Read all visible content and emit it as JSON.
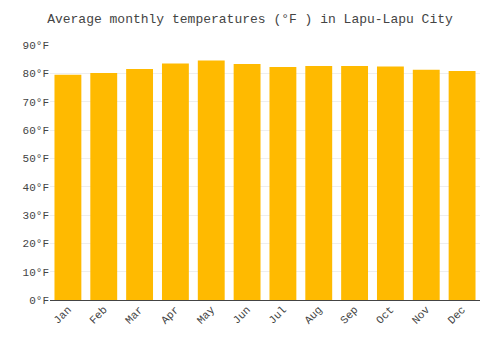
{
  "chart_data": {
    "type": "bar",
    "title": "Average monthly temperatures (°F ) in Lapu-Lapu City",
    "categories": [
      "Jan",
      "Feb",
      "Mar",
      "Apr",
      "May",
      "Jun",
      "Jul",
      "Aug",
      "Sep",
      "Oct",
      "Nov",
      "Dec"
    ],
    "values": [
      79.5,
      80.1,
      81.5,
      83.5,
      84.5,
      83.3,
      82.2,
      82.6,
      82.6,
      82.4,
      81.3,
      80.8
    ],
    "color": "#FFBA00",
    "ylim": [
      0,
      90
    ],
    "yticks": [
      {
        "value": 0,
        "label": "0°F"
      },
      {
        "value": 10,
        "label": "10°F"
      },
      {
        "value": 20,
        "label": "20°F"
      },
      {
        "value": 30,
        "label": "30°F"
      },
      {
        "value": 40,
        "label": "40°F"
      },
      {
        "value": 50,
        "label": "50°F"
      },
      {
        "value": 60,
        "label": "60°F"
      },
      {
        "value": 70,
        "label": "70°F"
      },
      {
        "value": 80,
        "label": "80°F"
      },
      {
        "value": 90,
        "label": "90°F"
      }
    ],
    "grid": true
  }
}
